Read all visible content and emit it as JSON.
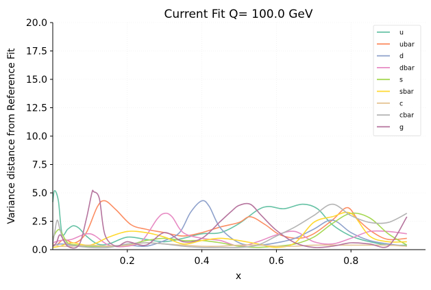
{
  "chart_data": {
    "type": "line",
    "title": "Current Fit Q= 100.0 GeV",
    "xlabel": "x",
    "ylabel": "Variance distance from Reference Fit",
    "xlim": [
      0.0,
      1.0
    ],
    "ylim": [
      0,
      20
    ],
    "xticks": [
      0.2,
      0.4,
      0.6,
      0.8
    ],
    "xtick_labels": [
      "0.2",
      "0.4",
      "0.6",
      "0.8"
    ],
    "yticks": [
      0,
      2.5,
      5,
      7.5,
      10,
      12.5,
      15,
      17.5,
      20
    ],
    "ytick_labels": [
      "0.0",
      "2.5",
      "5.0",
      "7.5",
      "10.0",
      "12.5",
      "15.0",
      "17.5",
      "20.0"
    ],
    "grid": true,
    "legend_position": "top-right",
    "series": [
      {
        "name": "u",
        "color": "#66c2a5",
        "x": [
          0.0,
          0.005,
          0.015,
          0.025,
          0.04,
          0.055,
          0.07,
          0.09,
          0.12,
          0.15,
          0.2,
          0.25,
          0.3,
          0.35,
          0.4,
          0.45,
          0.5,
          0.55,
          0.58,
          0.62,
          0.67,
          0.71,
          0.75,
          0.8,
          0.85,
          0.9,
          0.95
        ],
        "y": [
          4.2,
          5.2,
          4.3,
          1.4,
          1.8,
          2.1,
          1.9,
          1.2,
          0.5,
          0.5,
          1.1,
          0.9,
          0.7,
          1.0,
          1.4,
          1.5,
          2.3,
          3.5,
          3.8,
          3.6,
          4.0,
          3.6,
          2.2,
          1.2,
          0.7,
          0.4,
          0.4
        ]
      },
      {
        "name": "ubar",
        "color": "#fc8d62",
        "x": [
          0.0,
          0.01,
          0.03,
          0.06,
          0.09,
          0.12,
          0.14,
          0.17,
          0.21,
          0.25,
          0.3,
          0.35,
          0.4,
          0.45,
          0.5,
          0.53,
          0.57,
          0.61,
          0.66,
          0.7,
          0.75,
          0.79,
          0.82,
          0.86,
          0.9,
          0.95
        ],
        "y": [
          0.5,
          0.4,
          0.9,
          0.6,
          1.5,
          3.8,
          4.3,
          3.5,
          2.2,
          1.8,
          1.5,
          1.2,
          1.5,
          2.0,
          2.4,
          2.9,
          2.2,
          1.3,
          1.0,
          1.4,
          2.6,
          3.7,
          2.6,
          1.5,
          0.9,
          1.0
        ]
      },
      {
        "name": "d",
        "color": "#8da0cb",
        "x": [
          0.0,
          0.02,
          0.05,
          0.1,
          0.15,
          0.2,
          0.25,
          0.3,
          0.34,
          0.37,
          0.4,
          0.42,
          0.45,
          0.5,
          0.55,
          0.6,
          0.65,
          0.7,
          0.75,
          0.8,
          0.85,
          0.9,
          0.95
        ],
        "y": [
          0.3,
          0.5,
          0.4,
          0.3,
          0.3,
          0.4,
          0.3,
          0.8,
          1.5,
          3.3,
          4.3,
          3.8,
          1.9,
          0.6,
          0.4,
          0.6,
          1.0,
          1.8,
          2.6,
          1.5,
          0.8,
          0.5,
          0.3
        ]
      },
      {
        "name": "dbar",
        "color": "#e78ac3",
        "x": [
          0.0,
          0.02,
          0.05,
          0.1,
          0.15,
          0.2,
          0.24,
          0.28,
          0.3,
          0.32,
          0.35,
          0.4,
          0.45,
          0.5,
          0.55,
          0.6,
          0.65,
          0.7,
          0.75,
          0.8,
          0.85,
          0.9,
          0.95
        ],
        "y": [
          0.6,
          0.8,
          0.9,
          1.4,
          0.4,
          0.3,
          0.8,
          2.7,
          3.2,
          2.9,
          1.5,
          1.0,
          0.8,
          0.3,
          0.7,
          1.3,
          1.6,
          0.7,
          0.5,
          1.0,
          1.6,
          1.6,
          1.4
        ]
      },
      {
        "name": "s",
        "color": "#a6d854",
        "x": [
          0.0,
          0.01,
          0.02,
          0.04,
          0.07,
          0.1,
          0.15,
          0.2,
          0.25,
          0.3,
          0.35,
          0.4,
          0.45,
          0.5,
          0.55,
          0.6,
          0.65,
          0.7,
          0.75,
          0.8,
          0.85,
          0.9,
          0.95
        ],
        "y": [
          1.0,
          1.6,
          1.7,
          0.6,
          0.4,
          0.3,
          0.3,
          0.4,
          0.8,
          1.0,
          0.8,
          0.8,
          0.6,
          0.3,
          0.2,
          0.3,
          0.5,
          1.1,
          2.3,
          3.2,
          2.8,
          1.4,
          0.4
        ]
      },
      {
        "name": "sbar",
        "color": "#ffd92f",
        "x": [
          0.0,
          0.02,
          0.05,
          0.1,
          0.15,
          0.2,
          0.25,
          0.3,
          0.35,
          0.4,
          0.45,
          0.5,
          0.55,
          0.6,
          0.65,
          0.7,
          0.75,
          0.8,
          0.85,
          0.9,
          0.95
        ],
        "y": [
          0.2,
          0.3,
          0.6,
          0.4,
          1.1,
          1.6,
          1.5,
          1.1,
          0.5,
          0.8,
          1.0,
          0.8,
          0.5,
          0.2,
          0.6,
          2.4,
          2.9,
          3.2,
          1.2,
          0.7,
          0.7
        ]
      },
      {
        "name": "c",
        "color": "#e5c494",
        "x": [
          0.0,
          0.02,
          0.05,
          0.1,
          0.15,
          0.2,
          0.25,
          0.3,
          0.35,
          0.4,
          0.45,
          0.5,
          0.55,
          0.6,
          0.65,
          0.7,
          0.75,
          0.8,
          0.85,
          0.9,
          0.95
        ],
        "y": [
          0.5,
          0.3,
          0.3,
          0.4,
          0.3,
          0.4,
          0.6,
          0.5,
          0.4,
          0.3,
          0.3,
          0.4,
          0.4,
          0.3,
          0.3,
          0.4,
          0.4,
          0.4,
          0.4,
          0.4,
          0.3
        ]
      },
      {
        "name": "cbar",
        "color": "#b3b3b3",
        "x": [
          0.0,
          0.005,
          0.012,
          0.02,
          0.03,
          0.05,
          0.1,
          0.15,
          0.2,
          0.25,
          0.3,
          0.35,
          0.4,
          0.45,
          0.5,
          0.55,
          0.6,
          0.65,
          0.7,
          0.75,
          0.8,
          0.85,
          0.9,
          0.95
        ],
        "y": [
          0.5,
          1.5,
          2.6,
          1.7,
          0.8,
          0.4,
          0.2,
          0.2,
          0.5,
          0.6,
          0.5,
          0.3,
          0.2,
          0.2,
          0.2,
          0.4,
          1.2,
          2.0,
          3.0,
          4.0,
          3.0,
          2.4,
          2.4,
          3.2
        ]
      },
      {
        "name": "g",
        "color": "#b5739d",
        "x": [
          0.0,
          0.01,
          0.02,
          0.04,
          0.07,
          0.09,
          0.105,
          0.11,
          0.125,
          0.14,
          0.17,
          0.2,
          0.25,
          0.3,
          0.35,
          0.4,
          0.45,
          0.48,
          0.5,
          0.53,
          0.56,
          0.6,
          0.65,
          0.7,
          0.75,
          0.8,
          0.85,
          0.9,
          0.95
        ],
        "y": [
          0.3,
          0.6,
          1.3,
          0.3,
          0.4,
          2.7,
          5.0,
          5.1,
          4.5,
          1.3,
          0.3,
          0.7,
          0.4,
          1.5,
          0.7,
          1.0,
          2.5,
          3.4,
          3.9,
          4.0,
          3.0,
          1.7,
          0.6,
          0.2,
          0.3,
          0.6,
          0.5,
          0.3,
          2.9
        ]
      }
    ]
  }
}
